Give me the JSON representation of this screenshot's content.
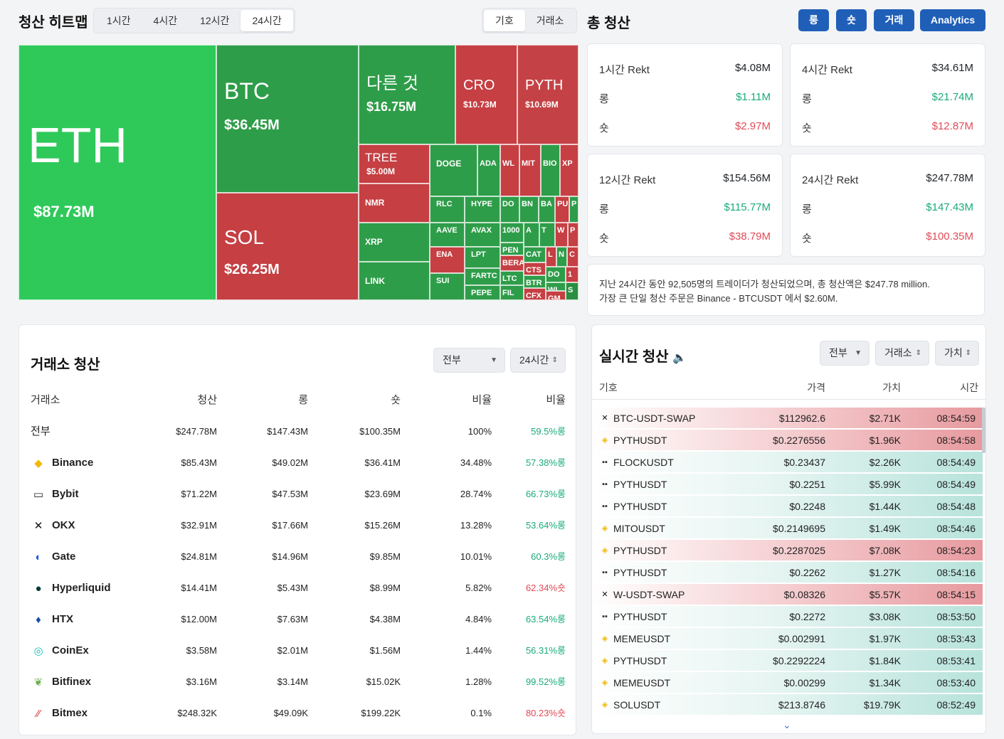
{
  "header": {
    "heatmap_title": "청산 히트맵",
    "timeframes": [
      "1시간",
      "4시간",
      "12시간",
      "24시간"
    ],
    "active_timeframe": 3,
    "view_tabs": [
      "기호",
      "거래소"
    ],
    "total_title": "총 청산",
    "buttons": [
      "롱",
      "숏",
      "거래",
      "Analytics"
    ]
  },
  "heatmap": {
    "tiles": [
      {
        "sym": "ETH",
        "val": "$87.73M"
      },
      {
        "sym": "BTC",
        "val": "$36.45M"
      },
      {
        "sym": "SOL",
        "val": "$26.25M"
      },
      {
        "sym": "다른 것",
        "val": "$16.75M"
      },
      {
        "sym": "CRO",
        "val": "$10.73M"
      },
      {
        "sym": "PYTH",
        "val": "$10.69M"
      },
      {
        "sym": "TREE",
        "val": "$5.00M"
      },
      {
        "sym": "NMR",
        "val": ""
      },
      {
        "sym": "XRP",
        "val": ""
      },
      {
        "sym": "LINK",
        "val": ""
      },
      {
        "sym": "DOGE",
        "val": ""
      },
      {
        "sym": "ADA",
        "val": ""
      },
      {
        "sym": "WL",
        "val": ""
      },
      {
        "sym": "MIT",
        "val": ""
      },
      {
        "sym": "BIO",
        "val": ""
      },
      {
        "sym": "XP",
        "val": ""
      },
      {
        "sym": "RLC",
        "val": ""
      },
      {
        "sym": "HYPE",
        "val": ""
      },
      {
        "sym": "DO",
        "val": ""
      },
      {
        "sym": "BN",
        "val": ""
      },
      {
        "sym": "BA",
        "val": ""
      },
      {
        "sym": "PU",
        "val": ""
      },
      {
        "sym": "P",
        "val": ""
      },
      {
        "sym": "AAVE",
        "val": ""
      },
      {
        "sym": "AVAX",
        "val": ""
      },
      {
        "sym": "1000",
        "val": ""
      },
      {
        "sym": "A",
        "val": ""
      },
      {
        "sym": "T",
        "val": ""
      },
      {
        "sym": "W",
        "val": ""
      },
      {
        "sym": "P",
        "val": ""
      },
      {
        "sym": "ENA",
        "val": ""
      },
      {
        "sym": "LPT",
        "val": ""
      },
      {
        "sym": "PEN",
        "val": ""
      },
      {
        "sym": "CAT",
        "val": ""
      },
      {
        "sym": "L",
        "val": ""
      },
      {
        "sym": "N",
        "val": ""
      },
      {
        "sym": "C",
        "val": ""
      },
      {
        "sym": "SUI",
        "val": ""
      },
      {
        "sym": "FARTC",
        "val": ""
      },
      {
        "sym": "BERA",
        "val": ""
      },
      {
        "sym": "CTS",
        "val": ""
      },
      {
        "sym": "DO",
        "val": ""
      },
      {
        "sym": "1",
        "val": ""
      },
      {
        "sym": "LTC",
        "val": ""
      },
      {
        "sym": "BTR",
        "val": ""
      },
      {
        "sym": "WL",
        "val": ""
      },
      {
        "sym": "PEPE",
        "val": ""
      },
      {
        "sym": "FIL",
        "val": ""
      },
      {
        "sym": "CFX",
        "val": ""
      },
      {
        "sym": "GM",
        "val": ""
      },
      {
        "sym": "S",
        "val": ""
      }
    ]
  },
  "rekt": [
    {
      "title": "1시간 Rekt",
      "total": "$4.08M",
      "long_label": "롱",
      "long": "$1.11M",
      "short_label": "숏",
      "short": "$2.97M"
    },
    {
      "title": "4시간 Rekt",
      "total": "$34.61M",
      "long_label": "롱",
      "long": "$21.74M",
      "short_label": "숏",
      "short": "$12.87M"
    },
    {
      "title": "12시간 Rekt",
      "total": "$154.56M",
      "long_label": "롱",
      "long": "$115.77M",
      "short_label": "숏",
      "short": "$38.79M"
    },
    {
      "title": "24시간 Rekt",
      "total": "$247.78M",
      "long_label": "롱",
      "long": "$147.43M",
      "short_label": "숏",
      "short": "$100.35M"
    }
  ],
  "summary": {
    "line1": "지난 24시간 동안 92,505명의 트레이더가 청산되었으며, 총 청산액은 $247.78 million.",
    "line2": "가장 큰 단일 청산 주문은 Binance - BTCUSDT 에서 $2.60M."
  },
  "exchange": {
    "title": "거래소 청산",
    "filter": "전부",
    "period": "24시간",
    "headers": [
      "거래소",
      "청산",
      "롱",
      "숏",
      "비율",
      "비율"
    ],
    "rows": [
      {
        "name": "전부",
        "icon": "",
        "total": "$247.78M",
        "long": "$147.43M",
        "short": "$100.35M",
        "ratio": "100%",
        "side": "59.5%롱",
        "side_color": "green"
      },
      {
        "name": "Binance",
        "icon": "binance-icon",
        "total": "$85.43M",
        "long": "$49.02M",
        "short": "$36.41M",
        "ratio": "34.48%",
        "side": "57.38%롱",
        "side_color": "green"
      },
      {
        "name": "Bybit",
        "icon": "bybit-icon",
        "total": "$71.22M",
        "long": "$47.53M",
        "short": "$23.69M",
        "ratio": "28.74%",
        "side": "66.73%롱",
        "side_color": "green"
      },
      {
        "name": "OKX",
        "icon": "okx-icon",
        "total": "$32.91M",
        "long": "$17.66M",
        "short": "$15.26M",
        "ratio": "13.28%",
        "side": "53.64%롱",
        "side_color": "green"
      },
      {
        "name": "Gate",
        "icon": "gate-icon",
        "total": "$24.81M",
        "long": "$14.96M",
        "short": "$9.85M",
        "ratio": "10.01%",
        "side": "60.3%롱",
        "side_color": "green"
      },
      {
        "name": "Hyperliquid",
        "icon": "hyperliquid-icon",
        "total": "$14.41M",
        "long": "$5.43M",
        "short": "$8.99M",
        "ratio": "5.82%",
        "side": "62.34%숏",
        "side_color": "red"
      },
      {
        "name": "HTX",
        "icon": "htx-icon",
        "total": "$12.00M",
        "long": "$7.63M",
        "short": "$4.38M",
        "ratio": "4.84%",
        "side": "63.54%롱",
        "side_color": "green"
      },
      {
        "name": "CoinEx",
        "icon": "coinex-icon",
        "total": "$3.58M",
        "long": "$2.01M",
        "short": "$1.56M",
        "ratio": "1.44%",
        "side": "56.31%롱",
        "side_color": "green"
      },
      {
        "name": "Bitfinex",
        "icon": "bitfinex-icon",
        "total": "$3.16M",
        "long": "$3.14M",
        "short": "$15.02K",
        "ratio": "1.28%",
        "side": "99.52%롱",
        "side_color": "green"
      },
      {
        "name": "Bitmex",
        "icon": "bitmex-icon",
        "total": "$248.32K",
        "long": "$49.09K",
        "short": "$199.22K",
        "ratio": "0.1%",
        "side": "80.23%숏",
        "side_color": "red"
      }
    ]
  },
  "live": {
    "title": "실시간 청산",
    "filter_all": "전부",
    "filter_exchange": "거래소",
    "filter_value": "가치",
    "headers": [
      "기호",
      "가격",
      "가치",
      "시간"
    ],
    "rows": [
      {
        "ex": "okx",
        "sym": "BTC-USDT-SWAP",
        "price": "$112962.6",
        "value": "$2.71K",
        "time": "08:54:59",
        "side": "red"
      },
      {
        "ex": "binance",
        "sym": "PYTHUSDT",
        "price": "$0.2276556",
        "value": "$1.96K",
        "time": "08:54:58",
        "side": "red"
      },
      {
        "ex": "bybit",
        "sym": "FLOCKUSDT",
        "price": "$0.23437",
        "value": "$2.26K",
        "time": "08:54:49",
        "side": "green"
      },
      {
        "ex": "bybit",
        "sym": "PYTHUSDT",
        "price": "$0.2251",
        "value": "$5.99K",
        "time": "08:54:49",
        "side": "green"
      },
      {
        "ex": "bybit",
        "sym": "PYTHUSDT",
        "price": "$0.2248",
        "value": "$1.44K",
        "time": "08:54:48",
        "side": "green"
      },
      {
        "ex": "binance",
        "sym": "MITOUSDT",
        "price": "$0.2149695",
        "value": "$1.49K",
        "time": "08:54:46",
        "side": "green"
      },
      {
        "ex": "binance",
        "sym": "PYTHUSDT",
        "price": "$0.2287025",
        "value": "$7.08K",
        "time": "08:54:23",
        "side": "red"
      },
      {
        "ex": "bybit",
        "sym": "PYTHUSDT",
        "price": "$0.2262",
        "value": "$1.27K",
        "time": "08:54:16",
        "side": "green"
      },
      {
        "ex": "okx",
        "sym": "W-USDT-SWAP",
        "price": "$0.08326",
        "value": "$5.57K",
        "time": "08:54:15",
        "side": "red"
      },
      {
        "ex": "bybit",
        "sym": "PYTHUSDT",
        "price": "$0.2272",
        "value": "$3.08K",
        "time": "08:53:50",
        "side": "green"
      },
      {
        "ex": "binance",
        "sym": "MEMEUSDT",
        "price": "$0.002991",
        "value": "$1.97K",
        "time": "08:53:43",
        "side": "green"
      },
      {
        "ex": "binance",
        "sym": "PYTHUSDT",
        "price": "$0.2292224",
        "value": "$1.84K",
        "time": "08:53:41",
        "side": "green"
      },
      {
        "ex": "binance",
        "sym": "MEMEUSDT",
        "price": "$0.00299",
        "value": "$1.34K",
        "time": "08:53:40",
        "side": "green"
      },
      {
        "ex": "binance",
        "sym": "SOLUSDT",
        "price": "$213.8746",
        "value": "$19.79K",
        "time": "08:52:49",
        "side": "green"
      }
    ]
  },
  "colors": {
    "accent": "#1f5fb8",
    "long_green": "#1aab7a",
    "short_red": "#e04b57",
    "tile_green": "#2e9d49",
    "tile_red": "#c53f43"
  }
}
